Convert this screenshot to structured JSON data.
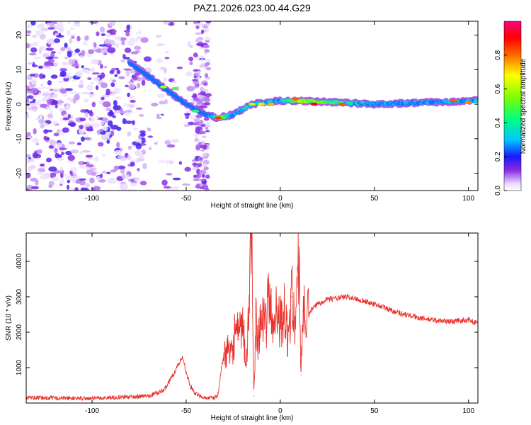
{
  "title": "PAZ1.2026.023.00.44.G29",
  "chart_data": [
    {
      "type": "heatmap",
      "name": "spectrogram",
      "xlabel": "Height of straight line (km)",
      "ylabel": "Frequency (Hz)",
      "xlim": [
        -135,
        105
      ],
      "ylim": [
        -25,
        24
      ],
      "xticks": [
        -100,
        -50,
        0,
        50,
        100
      ],
      "xtick_labels": [
        "-100",
        "-50",
        "0",
        "50",
        "100"
      ],
      "yticks": [
        -20,
        -10,
        0,
        10,
        20
      ],
      "ytick_labels": [
        "-20",
        "-10",
        "0",
        "10",
        "20"
      ],
      "colorbar": {
        "label": "Normalized spectral amplitude",
        "range": [
          0,
          1
        ],
        "ticks": [
          0,
          0.2,
          0.4,
          0.6,
          0.8
        ],
        "tick_labels": [
          "0.0",
          "0.2",
          "0.4",
          "0.6",
          "0.8"
        ]
      },
      "ridge": {
        "height_km": [
          -80,
          -70,
          -60,
          -50,
          -40,
          -33,
          -25,
          -15,
          0,
          10,
          50,
          105
        ],
        "frequency_hz": [
          12,
          8,
          4,
          0,
          -3,
          -4,
          -3,
          0,
          1,
          1,
          0,
          1
        ],
        "amplitude": [
          0.15,
          0.25,
          0.3,
          0.25,
          0.2,
          0.8,
          0.45,
          0.5,
          0.45,
          0.85,
          0.4,
          0.45
        ]
      },
      "noise_region_km": [
        -135,
        -38
      ]
    },
    {
      "type": "line",
      "name": "snr",
      "xlabel": "Height of straight line (km)",
      "ylabel": "SNR (10 * v/v)",
      "xlim": [
        -135,
        105
      ],
      "ylim": [
        0,
        4800
      ],
      "xticks": [
        -100,
        -50,
        0,
        50,
        100
      ],
      "xtick_labels": [
        "-100",
        "-50",
        "0",
        "50",
        "100"
      ],
      "yticks": [
        1000,
        2000,
        3000,
        4000
      ],
      "ytick_labels": [
        "1000",
        "2000",
        "3000",
        "4000"
      ],
      "color": "#e8322c",
      "series": [
        {
          "name": "SNR",
          "x": [
            -135,
            -100,
            -70,
            -62,
            -58,
            -55,
            -52,
            -50,
            -48,
            -45,
            -40,
            -35,
            -33,
            -31,
            -29,
            -26,
            -24,
            -22,
            -20,
            -18,
            -16,
            -15,
            -14,
            -13,
            -12,
            -10,
            -8,
            -6,
            -4,
            -2,
            0,
            2,
            4,
            6,
            8,
            10,
            11,
            12,
            14,
            16,
            20,
            25,
            30,
            35,
            40,
            50,
            60,
            70,
            80,
            90,
            100,
            105
          ],
          "y": [
            150,
            130,
            200,
            350,
            700,
            1000,
            1300,
            900,
            500,
            250,
            150,
            140,
            250,
            1100,
            1500,
            1300,
            2100,
            1800,
            2200,
            1000,
            3600,
            4800,
            200,
            2400,
            1800,
            2600,
            2000,
            3100,
            2000,
            2900,
            2300,
            2600,
            1800,
            3000,
            2300,
            4100,
            800,
            2600,
            2300,
            2600,
            2800,
            2950,
            2950,
            3000,
            2950,
            2800,
            2600,
            2450,
            2350,
            2300,
            2350,
            2250
          ]
        }
      ]
    }
  ]
}
